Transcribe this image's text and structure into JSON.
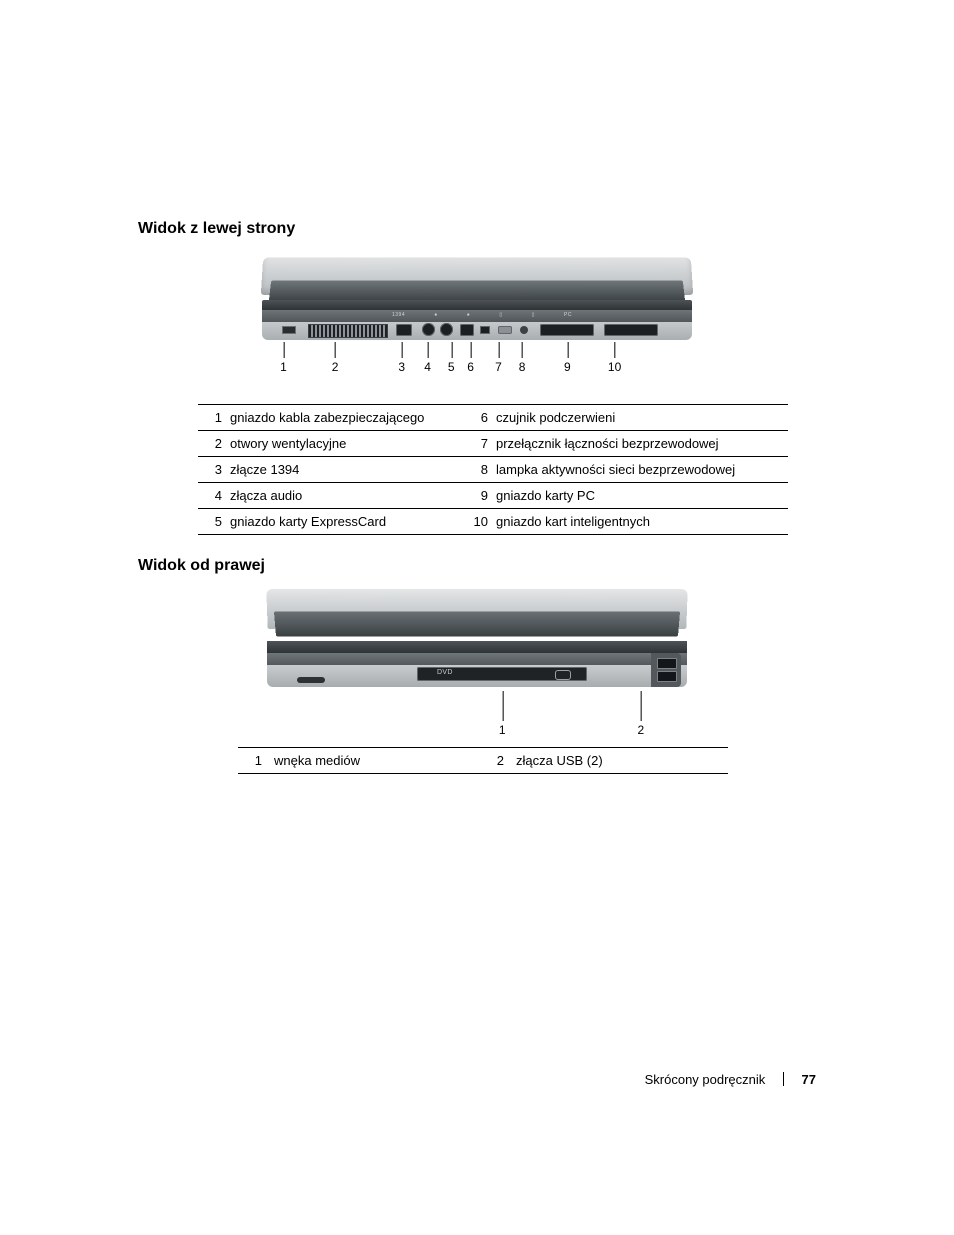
{
  "headings": {
    "left_view": "Widok z lewej strony",
    "right_view": "Widok od prawej"
  },
  "left_callout_numbers": [
    "1",
    "2",
    "3",
    "4",
    "5",
    "6",
    "7",
    "8",
    "9",
    "10"
  ],
  "left_callout_positions_pct": [
    5,
    17,
    32.5,
    38.5,
    44,
    48.5,
    55,
    60.5,
    71,
    82
  ],
  "left_parts": {
    "rows": [
      {
        "n": "1",
        "label": "gniazdo kabla zabezpieczającego",
        "n2": "6",
        "label2": "czujnik podczerwieni"
      },
      {
        "n": "2",
        "label": "otwory wentylacyjne",
        "n2": "7",
        "label2": "przełącznik łączności bezprzewodowej"
      },
      {
        "n": "3",
        "label": "złącze 1394",
        "n2": "8",
        "label2": "lampka aktywności sieci bezprzewodowej"
      },
      {
        "n": "4",
        "label": "złącza audio",
        "n2": "9",
        "label2": "gniazdo karty PC"
      },
      {
        "n": "5",
        "label": "gniazdo karty ExpressCard",
        "n2": "10",
        "label2": "gniazdo kart inteligentnych"
      }
    ]
  },
  "right_callout_numbers": [
    "1",
    "2"
  ],
  "right_callout_positions_pct": [
    56,
    89
  ],
  "right_parts": {
    "rows": [
      {
        "n": "1",
        "label": "wnęka mediów",
        "n2": "2",
        "label2": "złącza USB (2)"
      }
    ]
  },
  "footer": {
    "title": "Skrócony podręcznik",
    "page": "77"
  },
  "dvd_label": "DVD",
  "colors": {
    "callout_line": "#000000",
    "text": "#000000",
    "chassis_light": "#d9dcde",
    "chassis_dark": "#53585c"
  }
}
